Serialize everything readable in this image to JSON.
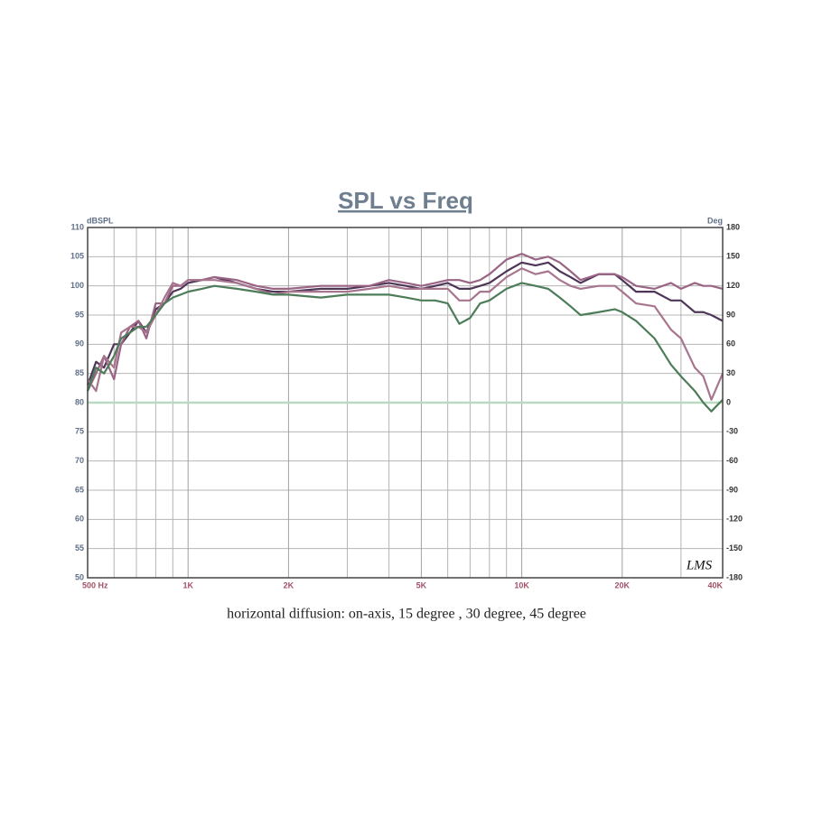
{
  "chart_data": {
    "type": "line",
    "title": "SPL vs Freq",
    "y_label": "dBSPL",
    "y2_label": "Deg",
    "annotation": "LMS",
    "caption": "horizontal diffusion: on-axis, 15 degree , 30 degree, 45 degree",
    "xscale": "log",
    "xlim": [
      500,
      40000
    ],
    "xticks": [
      {
        "value": 500,
        "label": "500  Hz"
      },
      {
        "value": 1000,
        "label": "1K"
      },
      {
        "value": 2000,
        "label": "2K"
      },
      {
        "value": 5000,
        "label": "5K"
      },
      {
        "value": 10000,
        "label": "10K"
      },
      {
        "value": 20000,
        "label": "20K"
      },
      {
        "value": 40000,
        "label": "40K"
      }
    ],
    "xgrid": [
      600,
      700,
      800,
      900,
      3000,
      4000,
      6000,
      7000,
      8000,
      9000,
      30000
    ],
    "ylim": [
      50,
      110
    ],
    "yticks": [
      50,
      55,
      60,
      65,
      70,
      75,
      80,
      85,
      90,
      95,
      100,
      105,
      110
    ],
    "y2lim": [
      -180,
      180
    ],
    "y2ticks": [
      -180,
      -150,
      -120,
      -90,
      -60,
      -30,
      0,
      30,
      60,
      90,
      120,
      150,
      180
    ],
    "hline": {
      "axis": "y2",
      "value": 0,
      "color": "#b9d9c3"
    },
    "grid": true,
    "x": [
      500,
      530,
      560,
      600,
      630,
      670,
      710,
      750,
      800,
      850,
      900,
      950,
      1000,
      1100,
      1200,
      1400,
      1600,
      1800,
      2000,
      2500,
      3000,
      3500,
      4000,
      4500,
      5000,
      5500,
      6000,
      6500,
      7000,
      7500,
      8000,
      9000,
      10000,
      11000,
      12000,
      13000,
      14000,
      15000,
      17000,
      19000,
      20000,
      22000,
      25000,
      28000,
      30000,
      33000,
      35000,
      37000,
      40000
    ],
    "series": [
      {
        "color": "#4e3658",
        "values": [
          83,
          87,
          86,
          90,
          90,
          92,
          94,
          92,
          96,
          97,
          99,
          99.5,
          100.5,
          101,
          101.5,
          100.5,
          99.5,
          99,
          99,
          99.5,
          99.5,
          100,
          100.5,
          100,
          99.5,
          100,
          100.5,
          99.5,
          99.5,
          100,
          100.5,
          102.5,
          104,
          103.5,
          104,
          102.5,
          101.5,
          100.5,
          102,
          102,
          101,
          99,
          99,
          97.5,
          97.5,
          95.5,
          95.5,
          95,
          94
        ]
      },
      {
        "color": "#9a6584",
        "values": [
          82,
          85,
          88,
          84,
          90,
          93,
          94,
          91,
          97,
          97,
          100,
          100,
          101,
          101,
          101.5,
          101,
          100,
          99.5,
          99.5,
          100,
          100,
          100,
          101,
          100.5,
          100,
          100.5,
          101,
          101,
          100.5,
          101,
          102,
          104.5,
          105.5,
          104.5,
          105,
          104,
          102.5,
          101,
          102,
          102,
          101.5,
          100,
          99.5,
          100.5,
          99.5,
          100.5,
          100,
          100,
          99.5
        ]
      },
      {
        "color": "#a7758e",
        "values": [
          84,
          82,
          88,
          86,
          92,
          93,
          93,
          92,
          95,
          98,
          100.5,
          100,
          101,
          101,
          101,
          100.5,
          99.5,
          98.5,
          99,
          99,
          99,
          99.5,
          100,
          99.5,
          99.5,
          99.5,
          99.5,
          97.5,
          97.5,
          99,
          99,
          101.5,
          103,
          102,
          102.5,
          101,
          100,
          99.5,
          100,
          100,
          99,
          97,
          96.5,
          92.5,
          91,
          86,
          84.5,
          80.5,
          85
        ]
      },
      {
        "color": "#4d7d58",
        "values": [
          82,
          86,
          85,
          88,
          91,
          92,
          93,
          93,
          95,
          97,
          98,
          98.5,
          99,
          99.5,
          100,
          99.5,
          99,
          98.5,
          98.5,
          98,
          98.5,
          98.5,
          98.5,
          98,
          97.5,
          97.5,
          97,
          93.5,
          94.5,
          97,
          97.5,
          99.5,
          100.5,
          100,
          99.5,
          98,
          96.5,
          95,
          95.5,
          96,
          95.5,
          94,
          91,
          86.5,
          84.5,
          82,
          80,
          78.5,
          80.5
        ]
      }
    ]
  }
}
